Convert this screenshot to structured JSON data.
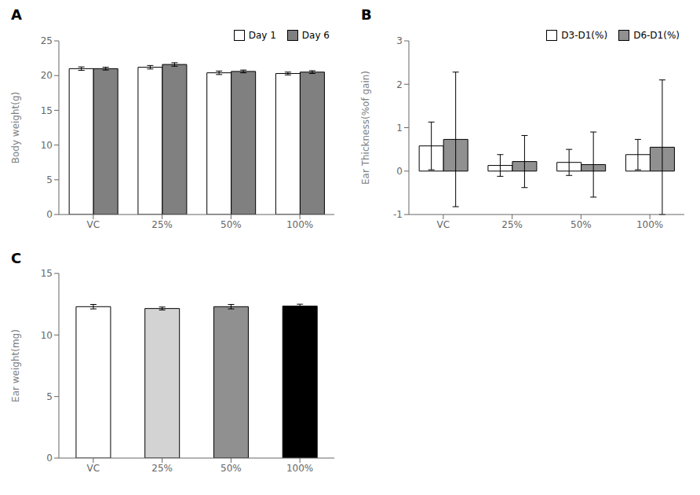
{
  "chart_data": [
    {
      "type": "bar",
      "title": "A",
      "categories": [
        "VC",
        "25%",
        "50%",
        "100%"
      ],
      "ylabel": "Body weight(g)",
      "ylim": [
        0,
        25
      ],
      "yticks": [
        0,
        5,
        10,
        15,
        20,
        25
      ],
      "grid": false,
      "legend": "upper right",
      "series": [
        {
          "name": "Day 1",
          "color": "#ffffff",
          "values": [
            21.0,
            21.2,
            20.4,
            20.3
          ],
          "errors": [
            0.25,
            0.25,
            0.25,
            0.2
          ]
        },
        {
          "name": "Day 6",
          "color": "#808080",
          "values": [
            21.0,
            21.6,
            20.6,
            20.5
          ],
          "errors": [
            0.2,
            0.25,
            0.2,
            0.2
          ]
        }
      ]
    },
    {
      "type": "bar",
      "title": "B",
      "categories": [
        "VC",
        "25%",
        "50%",
        "100%"
      ],
      "ylabel": "Ear Thickness(%of gain)",
      "ylim": [
        -1,
        3
      ],
      "yticks": [
        -1,
        0,
        1,
        2,
        3
      ],
      "grid": false,
      "legend": "upper right",
      "series": [
        {
          "name": "D3-D1(%)",
          "color": "#ffffff",
          "values": [
            0.58,
            0.13,
            0.2,
            0.38
          ],
          "errors": [
            0.55,
            0.25,
            0.3,
            0.35
          ]
        },
        {
          "name": "D6-D1(%)",
          "color": "#909090",
          "values": [
            0.73,
            0.22,
            0.15,
            0.55
          ],
          "errors": [
            1.55,
            0.6,
            0.75,
            1.55
          ]
        }
      ]
    },
    {
      "type": "bar",
      "title": "C",
      "categories": [
        "VC",
        "25%",
        "50%",
        "100%"
      ],
      "ylabel": "Ear weight(mg)",
      "ylim": [
        0,
        15
      ],
      "yticks": [
        0,
        5,
        10,
        15
      ],
      "grid": false,
      "values": [
        12.3,
        12.15,
        12.3,
        12.35
      ],
      "errors": [
        0.18,
        0.12,
        0.18,
        0.15
      ],
      "colors": [
        "#ffffff",
        "#d3d3d3",
        "#909090",
        "#000000"
      ]
    }
  ]
}
